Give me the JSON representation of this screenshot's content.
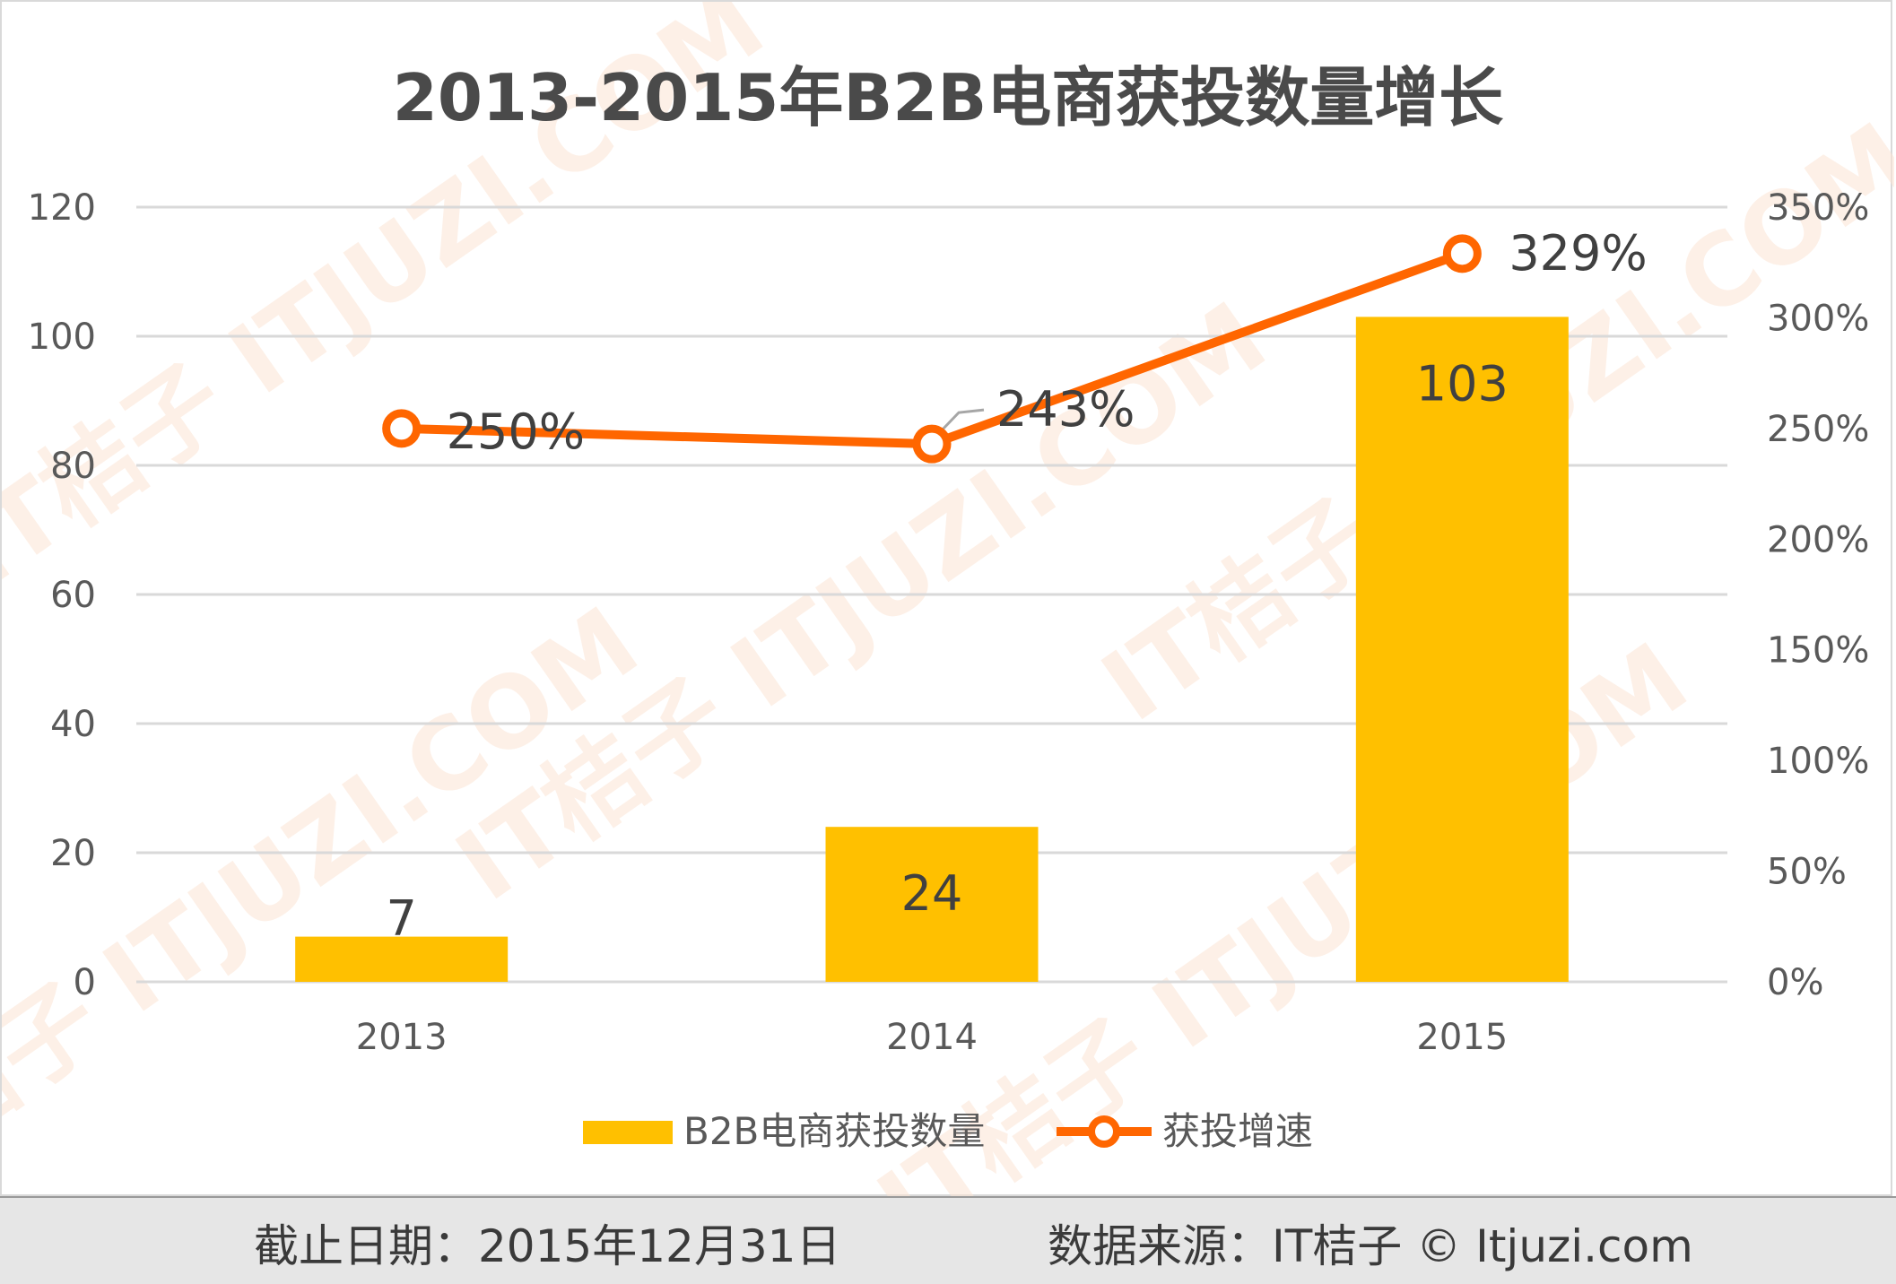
{
  "chart_data": {
    "type": "bar",
    "title": "2013-2015年B2B电商获投数量增长",
    "categories": [
      "2013",
      "2014",
      "2015"
    ],
    "series": [
      {
        "name": "B2B电商获投数量",
        "type": "bar",
        "axis": "left",
        "values": [
          7,
          24,
          103
        ],
        "labels": [
          "7",
          "24",
          "103"
        ],
        "color": "#ffc000"
      },
      {
        "name": "获投增速",
        "type": "line",
        "axis": "right",
        "values": [
          250,
          243,
          329
        ],
        "labels": [
          "250%",
          "243%",
          "329%"
        ],
        "color": "#ff6600"
      }
    ],
    "y_left": {
      "min": 0,
      "max": 120,
      "ticks": [
        "0",
        "20",
        "40",
        "60",
        "80",
        "100",
        "120"
      ]
    },
    "y_right": {
      "min": 0,
      "max": 350,
      "ticks": [
        "0%",
        "50%",
        "100%",
        "150%",
        "200%",
        "250%",
        "300%",
        "350%"
      ]
    },
    "grid": true,
    "legend": "bottom",
    "watermark": "IT桔子 ITJUZI.COM"
  },
  "footer": {
    "date_text": "截止日期：2015年12月31日",
    "source_text": "数据来源：IT桔子 © Itjuzi.com"
  }
}
